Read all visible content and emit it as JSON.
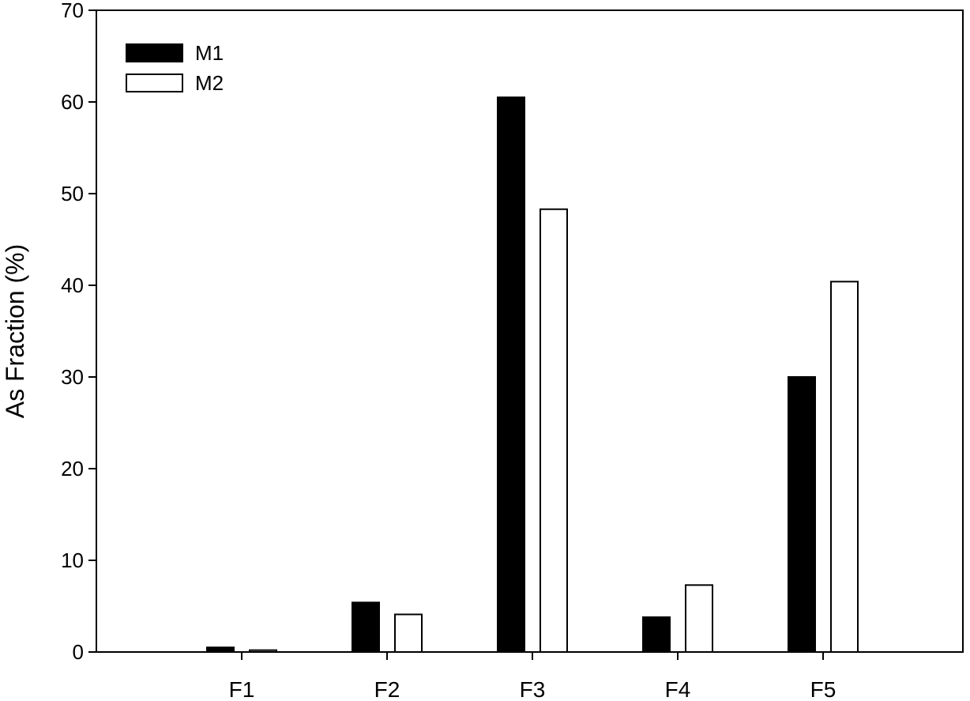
{
  "chart_data": {
    "type": "bar",
    "title": "",
    "xlabel": "",
    "ylabel": "As Fraction (%)",
    "categories": [
      "F1",
      "F2",
      "F3",
      "F4",
      "F5"
    ],
    "series": [
      {
        "name": "M1",
        "color": "#000000",
        "values": [
          0.5,
          5.4,
          60.5,
          3.8,
          30.0
        ]
      },
      {
        "name": "M2",
        "color": "#ffffff",
        "values": [
          0.2,
          4.1,
          48.3,
          7.3,
          40.4
        ]
      }
    ],
    "ylim": [
      0,
      70
    ],
    "yticks": [
      "0",
      "10",
      "20",
      "30",
      "40",
      "50",
      "60",
      "70"
    ],
    "grid": false,
    "legend_position": "top-left"
  }
}
